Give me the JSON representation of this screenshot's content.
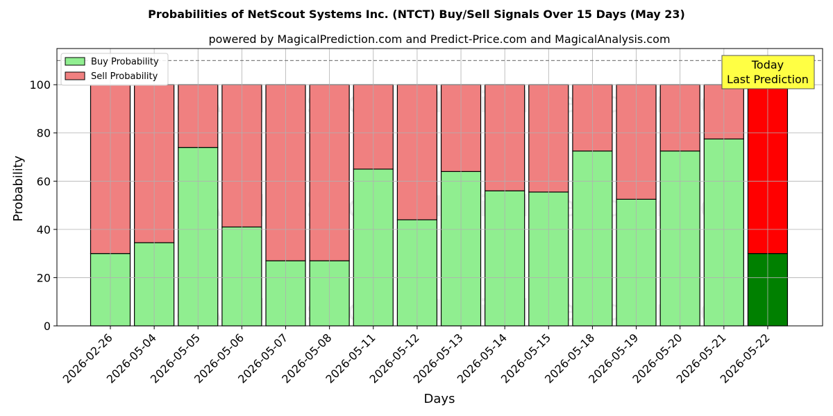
{
  "chart_data": {
    "type": "bar",
    "stacked": true,
    "title": "Probabilities of NetScout Systems Inc. (NTCT) Buy/Sell Signals Over 15 Days (May 23)",
    "subtitle": "powered by MagicalPrediction.com and Predict-Price.com and MagicalAnalysis.com",
    "xlabel": "Days",
    "ylabel": "Probability",
    "ylim": [
      0,
      115
    ],
    "yticks": [
      0,
      20,
      40,
      60,
      80,
      100
    ],
    "reference_line": 110,
    "grid": true,
    "legend_position": "top-left",
    "categories": [
      "2026-02-26",
      "2026-05-04",
      "2026-05-05",
      "2026-05-06",
      "2026-05-07",
      "2026-05-08",
      "2026-05-11",
      "2026-05-12",
      "2026-05-13",
      "2026-05-14",
      "2026-05-15",
      "2026-05-18",
      "2026-05-19",
      "2026-05-20",
      "2026-05-21",
      "2026-05-22"
    ],
    "series": [
      {
        "name": "Buy Probability",
        "color": "#90ee90",
        "highlight_color": "#008000",
        "values": [
          30,
          34.5,
          74,
          41,
          27,
          27,
          65,
          44,
          64,
          56,
          55.5,
          72.5,
          52.5,
          72.5,
          77.5,
          30
        ]
      },
      {
        "name": "Sell Probability",
        "color": "#f08080",
        "highlight_color": "#ff0000",
        "values": [
          70,
          65.5,
          26,
          59,
          73,
          73,
          35,
          56,
          36,
          44,
          44.5,
          27.5,
          47.5,
          27.5,
          22.5,
          70
        ]
      }
    ],
    "highlight_category": "2026-05-22",
    "annotation": {
      "lines": [
        "Today",
        "Last Prediction"
      ],
      "background": "#ffff44"
    },
    "watermarks": [
      "MagicalAnalysis.com",
      "MagicalPrediction.com"
    ]
  }
}
